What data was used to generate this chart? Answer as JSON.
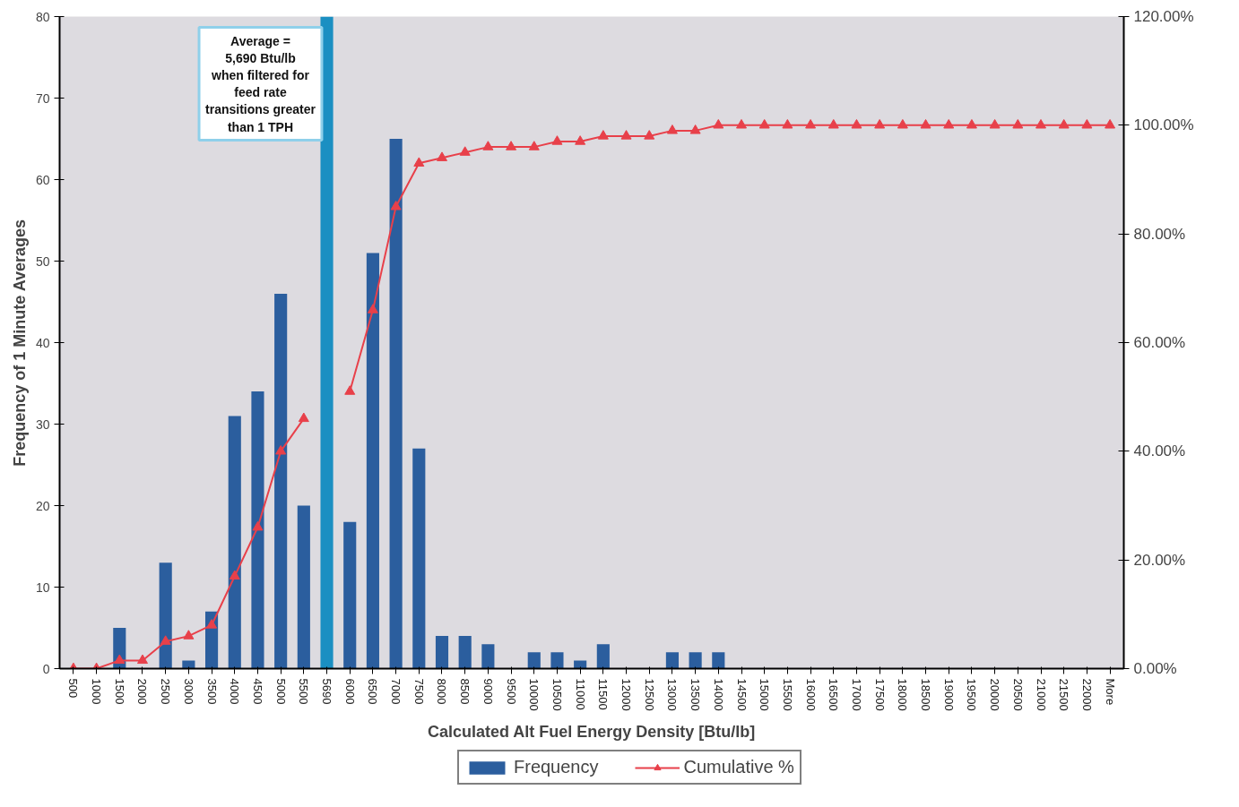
{
  "chart_data": {
    "type": "bar",
    "xlabel": "Calculated Alt Fuel Energy Density [Btu/lb]",
    "ylabel": "Frequency of 1 Minute Averages",
    "categories": [
      "500",
      "1000",
      "1500",
      "2000",
      "2500",
      "3000",
      "3500",
      "4000",
      "4500",
      "5000",
      "5500",
      "5690",
      "6000",
      "6500",
      "7000",
      "7500",
      "8000",
      "8500",
      "9000",
      "9500",
      "10000",
      "10500",
      "11000",
      "11500",
      "12000",
      "12500",
      "13000",
      "13500",
      "14000",
      "14500",
      "15000",
      "15500",
      "16000",
      "16500",
      "17000",
      "17500",
      "18000",
      "18500",
      "19000",
      "19500",
      "20000",
      "20500",
      "21000",
      "21500",
      "22000",
      "More"
    ],
    "series": [
      {
        "name": "Frequency",
        "color": "#2b5e9e",
        "colors": [
          "#2b5e9e",
          "#2b5e9e",
          "#2b5e9e",
          "#2b5e9e",
          "#2b5e9e",
          "#2b5e9e",
          "#2b5e9e",
          "#2b5e9e",
          "#2b5e9e",
          "#2b5e9e",
          "#2b5e9e",
          "#1b8fc2",
          "#2b5e9e",
          "#2b5e9e",
          "#2b5e9e",
          "#2b5e9e",
          "#2b5e9e",
          "#2b5e9e",
          "#2b5e9e",
          "#2b5e9e",
          "#2b5e9e",
          "#2b5e9e",
          "#2b5e9e",
          "#2b5e9e",
          "#2b5e9e",
          "#2b5e9e",
          "#2b5e9e",
          "#2b5e9e",
          "#2b5e9e",
          "#2b5e9e",
          "#2b5e9e",
          "#2b5e9e",
          "#2b5e9e",
          "#2b5e9e",
          "#2b5e9e",
          "#2b5e9e",
          "#2b5e9e",
          "#2b5e9e",
          "#2b5e9e",
          "#2b5e9e",
          "#2b5e9e",
          "#2b5e9e",
          "#2b5e9e",
          "#2b5e9e",
          "#2b5e9e",
          "#2b5e9e"
        ],
        "values": [
          0,
          0,
          5,
          0,
          13,
          1,
          7,
          31,
          34,
          46,
          20,
          80,
          18,
          51,
          65,
          27,
          4,
          4,
          3,
          0,
          2,
          2,
          1,
          3,
          0,
          0,
          2,
          2,
          2,
          0,
          0,
          0,
          0,
          0,
          0,
          0,
          0,
          0,
          0,
          0,
          0,
          0,
          0,
          0,
          0,
          0
        ]
      },
      {
        "name": "Cumulative %",
        "type": "line",
        "axis": "y2",
        "color": "#e8404a",
        "values": [
          0,
          0,
          1.5,
          1.5,
          5,
          6,
          8,
          17,
          26,
          40,
          46,
          null,
          51,
          66,
          85,
          93,
          94,
          95,
          96,
          96,
          96,
          97,
          97,
          98,
          98,
          98,
          99,
          99,
          100,
          100,
          100,
          100,
          100,
          100,
          100,
          100,
          100,
          100,
          100,
          100,
          100,
          100,
          100,
          100,
          100,
          100
        ]
      }
    ],
    "ylim": [
      0,
      80
    ],
    "yticks": [
      0,
      10,
      20,
      30,
      40,
      50,
      60,
      70,
      80
    ],
    "y2lim": [
      0,
      120
    ],
    "y2ticks": [
      {
        "value": 0,
        "label": "0.00%"
      },
      {
        "value": 20,
        "label": "20.00%"
      },
      {
        "value": 40,
        "label": "40.00%"
      },
      {
        "value": 60,
        "label": "60.00%"
      },
      {
        "value": 80,
        "label": "80.00%"
      },
      {
        "value": 100,
        "label": "100.00%"
      },
      {
        "value": 120,
        "label": "120.00%"
      }
    ],
    "marker": "triangle",
    "grid": false,
    "legend": "bottom",
    "annotations": [
      "Average =\n5,690 Btu/lb\nwhen filtered for\nfeed rate\ntransitions greater\nthan 1 TPH"
    ]
  }
}
